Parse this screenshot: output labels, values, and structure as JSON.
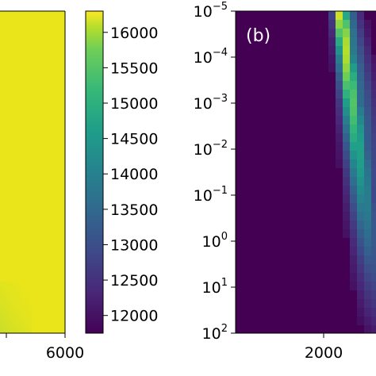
{
  "chart_data": [
    {
      "type": "heatmap",
      "panel": "a (partial, right edge)",
      "x_tick_labels": [
        "6000"
      ],
      "fill_color": "#e9e51a",
      "corner_color": "#c8de2a",
      "colorbar": {
        "range": [
          11750,
          16300
        ],
        "ticks": [
          {
            "value": 16000,
            "label": "16000"
          },
          {
            "value": 15500,
            "label": "15500"
          },
          {
            "value": 15000,
            "label": "15000"
          },
          {
            "value": 14500,
            "label": "14500"
          },
          {
            "value": 14000,
            "label": "14000"
          },
          {
            "value": 13500,
            "label": "13500"
          },
          {
            "value": 13000,
            "label": "13000"
          },
          {
            "value": 12500,
            "label": "12500"
          },
          {
            "value": 12000,
            "label": "12000"
          }
        ]
      }
    },
    {
      "type": "heatmap",
      "panel_label": "(b)",
      "y_scale": "log",
      "y_ticks": [
        {
          "mant": "10",
          "exp": "−5",
          "value": 1e-05
        },
        {
          "mant": "10",
          "exp": "−4",
          "value": 0.0001
        },
        {
          "mant": "10",
          "exp": "−3",
          "value": 0.001
        },
        {
          "mant": "10",
          "exp": "−2",
          "value": 0.01
        },
        {
          "mant": "10",
          "exp": "−1",
          "value": 0.1
        },
        {
          "mant": "10",
          "exp": "0",
          "value": 1
        },
        {
          "mant": "10",
          "exp": "1",
          "value": 10
        },
        {
          "mant": "10",
          "exp": "2",
          "value": 100
        }
      ],
      "x_tick_labels": [
        "2000"
      ],
      "background_color": "#440154",
      "ridge": {
        "x_at_top": 2100,
        "x_at_bottom": 2900,
        "peak_color": "#fde725"
      }
    }
  ]
}
